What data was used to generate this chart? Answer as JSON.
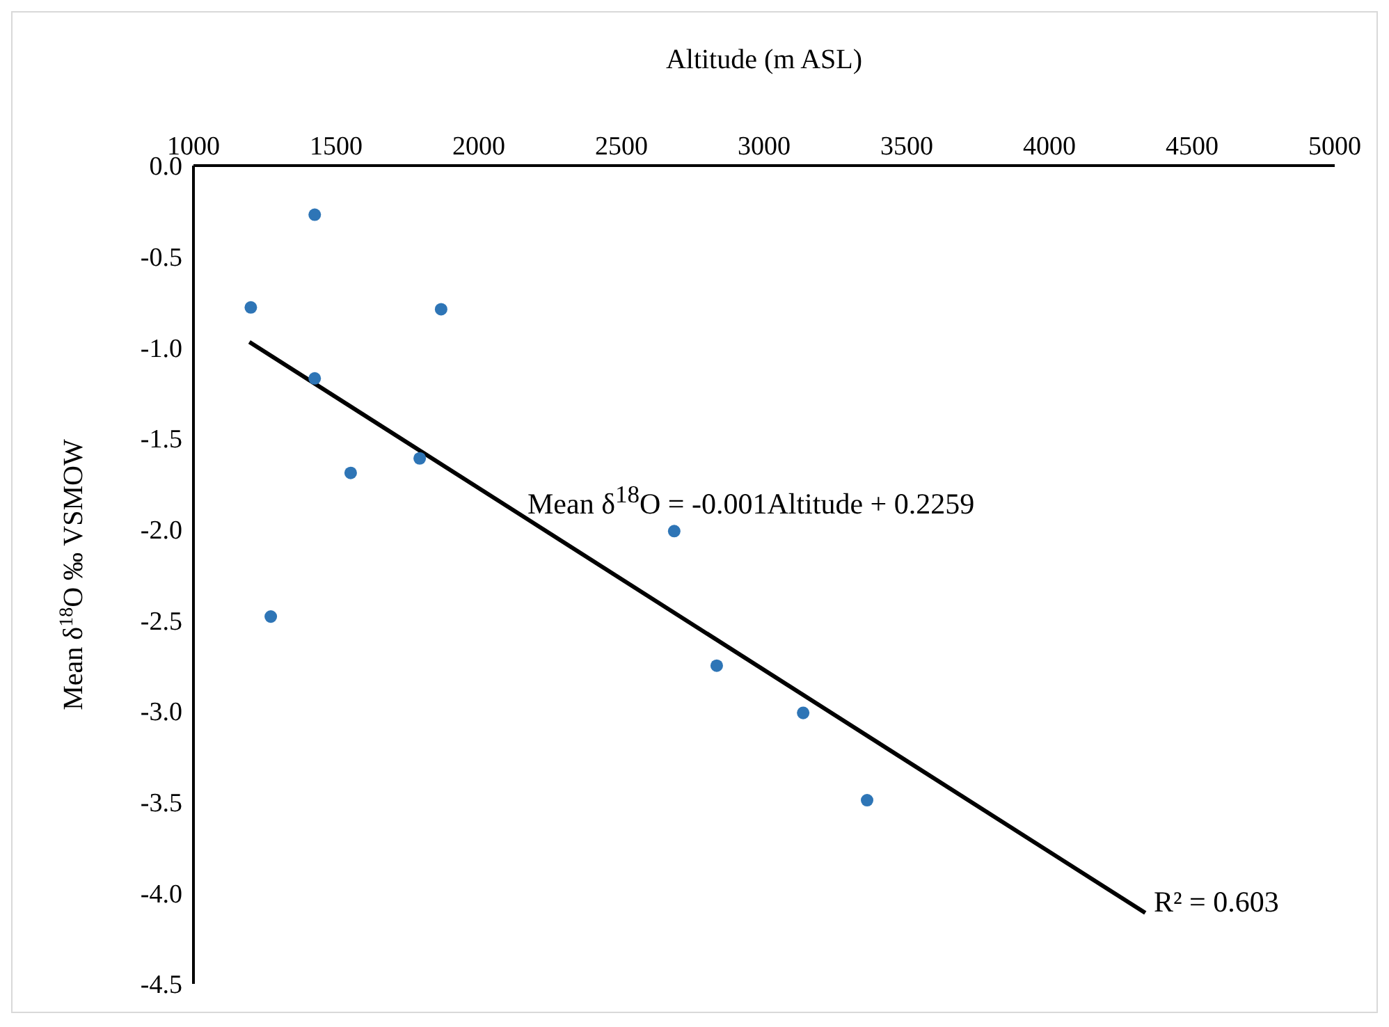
{
  "chart_data": {
    "type": "scatter",
    "xlabel": "Altitude (m ASL)",
    "ylabel": "Mean δ$^{18}$O ‰  VSMOW",
    "xlim": [
      1000,
      5000
    ],
    "xticks": [
      1000,
      1500,
      2000,
      2500,
      3000,
      3500,
      4000,
      4500,
      5000
    ],
    "ylim": [
      -4.5,
      0
    ],
    "yticks": [
      {
        "value": 0,
        "label": "0.0"
      },
      {
        "value": -0.5,
        "label": "-0.5"
      },
      {
        "value": -1,
        "label": "-1.0"
      },
      {
        "value": -1.5,
        "label": "-1.5"
      },
      {
        "value": -2,
        "label": "-2.0"
      },
      {
        "value": -2.5,
        "label": "-2.5"
      },
      {
        "value": -3,
        "label": "-3.0"
      },
      {
        "value": -3.5,
        "label": "-3.5"
      },
      {
        "value": -4,
        "label": "-4.0"
      },
      {
        "value": -4.5,
        "label": "-4.5"
      }
    ],
    "marker": "circle",
    "series": [
      {
        "color": "#2e75b6",
        "x": [
          1201,
          1425,
          1425,
          1271,
          1551,
          1793,
          1868,
          2685,
          2834,
          3137,
          3361
        ],
        "values": [
          -0.78,
          -0.27,
          -1.17,
          -2.48,
          -1.69,
          -1.61,
          -0.79,
          -2.01,
          -2.75,
          -3.01,
          -3.49
        ]
      },
      {
        "type": "line",
        "marker": "none",
        "color": "#000000",
        "line_style": "solid",
        "x": [
          1196,
          4336
        ],
        "values": [
          -0.97,
          -4.11
        ]
      }
    ],
    "annotations": [
      "Mean δ$^{18}$O  = -0.001Altitude + 0.2259",
      "R² = 0.603"
    ]
  }
}
